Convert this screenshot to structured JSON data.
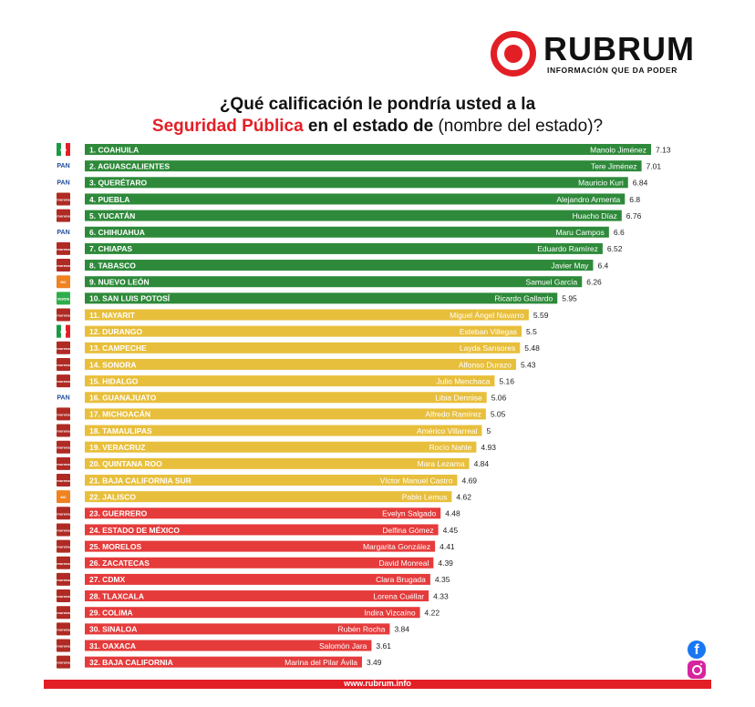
{
  "brand": {
    "name": "RUBRUM",
    "tagline": "INFORMACIÓN QUE DA PODER",
    "color": "#e31f26"
  },
  "title": {
    "line1": "¿Qué calificación le pondría usted a la",
    "line2_red": "Seguridad Pública",
    "line2_bold": " en el estado de ",
    "line2_normal": "(nombre del estado)?"
  },
  "footer": {
    "url": "www.rubrum.info"
  },
  "colors": {
    "green": "#2e8a3a",
    "yellow": "#e8bf3c",
    "red": "#e53b3b",
    "morena": "#b02a24",
    "pan": "#1e4b9a",
    "pri": "#1a9a46",
    "mc": "#f08220",
    "verde": "#2eae4a"
  },
  "icons": {
    "facebook": "facebook-icon",
    "instagram": "instagram-icon"
  },
  "chart_data": {
    "type": "bar",
    "orientation": "horizontal",
    "xlim": [
      0,
      7.8
    ],
    "categories": [
      "1. COAHUILA",
      "2. AGUASCALIENTES",
      "3. QUERÉTARO",
      "4. PUEBLA",
      "5. YUCATÁN",
      "6. CHIHUAHUA",
      "7. CHIAPAS",
      "8. TABASCO",
      "9. NUEVO LEÓN",
      "10. SAN LUIS POTOSÍ",
      "11. NAYARIT",
      "12. DURANGO",
      "13. CAMPECHE",
      "14. SONORA",
      "15. HIDALGO",
      "16. GUANAJUATO",
      "17. MICHOACÁN",
      "18. TAMAULIPAS",
      "19. VERACRUZ",
      "20. QUINTANA ROO",
      "21. BAJA CALIFORNIA SUR",
      "22. JALISCO",
      "23. GUERRERO",
      "24. ESTADO DE MÉXICO",
      "25. MORELOS",
      "26. ZACATECAS",
      "27. CDMX",
      "28. TLAXCALA",
      "29. COLIMA",
      "30. SINALOA",
      "31. OAXACA",
      "32. BAJA CALIFORNIA"
    ],
    "governors": [
      "Manolo Jiménez",
      "Tere Jiménez",
      "Mauricio Kuri",
      "Alejandro Armenta",
      "Huacho Díaz",
      "Maru Campos",
      "Eduardo Ramírez",
      "Javier May",
      "Samuel García",
      "Ricardo Gallardo",
      "Miguel Ángel Navarro",
      "Esteban Villegas",
      "Layda Sansores",
      "Alfonso Durazo",
      "Julio Menchaca",
      "Libia Dennise",
      "Alfredo Ramírez",
      "Américo Villarreal",
      "Rocío Nahle",
      "Mara Lezama",
      "Víctor Manuel Castro",
      "Pablo Lemus",
      "Evelyn Salgado",
      "Delfina Gómez",
      "Margarita González",
      "David Monreal",
      "Clara Brugada",
      "Lorena Cuéllar",
      "Indira Vizcaíno",
      "Rubén Rocha",
      "Salomón Jara",
      "Marina del Pilar Ávila"
    ],
    "values": [
      7.13,
      7.01,
      6.84,
      6.8,
      6.76,
      6.6,
      6.52,
      6.4,
      6.26,
      5.95,
      5.59,
      5.5,
      5.48,
      5.43,
      5.16,
      5.06,
      5.05,
      5,
      4.93,
      4.84,
      4.69,
      4.62,
      4.48,
      4.45,
      4.41,
      4.39,
      4.35,
      4.33,
      4.22,
      3.84,
      3.61,
      3.49
    ],
    "value_labels": [
      "7.13",
      "7.01",
      "6.84",
      "6.8",
      "6.76",
      "6.6",
      "6.52",
      "6.4",
      "6.26",
      "5.95",
      "5.59",
      "5.5",
      "5.48",
      "5.43",
      "5.16",
      "5.06",
      "5.05",
      "5",
      "4.93",
      "4.84",
      "4.69",
      "4.62",
      "4.48",
      "4.45",
      "4.41",
      "4.39",
      "4.35",
      "4.33",
      "4.22",
      "3.84",
      "3.61",
      "3.49"
    ],
    "bar_colors": [
      "green",
      "green",
      "green",
      "green",
      "green",
      "green",
      "green",
      "green",
      "green",
      "green",
      "yellow",
      "yellow",
      "yellow",
      "yellow",
      "yellow",
      "yellow",
      "yellow",
      "yellow",
      "yellow",
      "yellow",
      "yellow",
      "yellow",
      "red",
      "red",
      "red",
      "red",
      "red",
      "red",
      "red",
      "red",
      "red",
      "red"
    ],
    "parties": [
      "PRI",
      "PAN",
      "PAN",
      "MORENA",
      "MORENA",
      "PAN",
      "MORENA",
      "MORENA",
      "MC",
      "VERDE",
      "MORENA",
      "PRI",
      "MORENA",
      "MORENA",
      "MORENA",
      "PAN",
      "MORENA",
      "MORENA",
      "MORENA",
      "MORENA",
      "MORENA",
      "MC",
      "MORENA",
      "MORENA",
      "MORENA",
      "MORENA",
      "MORENA",
      "MORENA",
      "MORENA",
      "MORENA",
      "MORENA",
      "MORENA"
    ],
    "party_labels": {
      "PRI": "PRI",
      "PAN": "PAN",
      "MORENA": "morena",
      "MC": "MC",
      "VERDE": "VERDE"
    }
  }
}
